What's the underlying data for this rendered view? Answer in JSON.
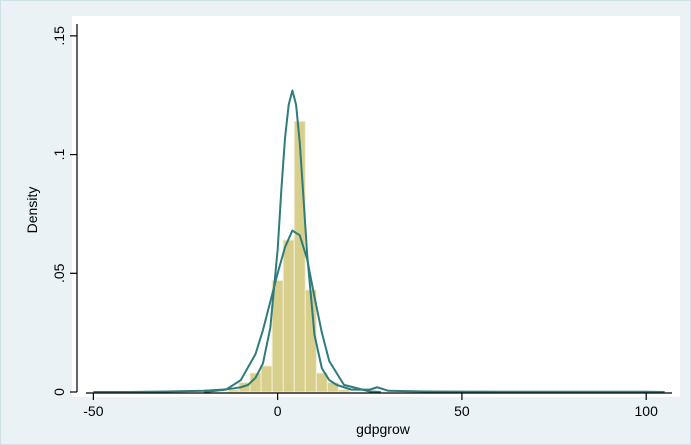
{
  "chart_data": {
    "type": "bar",
    "title": "",
    "xlabel": "gdpgrow",
    "ylabel": "Density",
    "xlim": [
      -52,
      107
    ],
    "ylim": [
      0,
      0.155
    ],
    "x_ticks": [
      -50,
      0,
      50,
      100
    ],
    "x_tick_labels": [
      "-50",
      "0",
      "50",
      "100"
    ],
    "y_ticks": [
      0,
      0.05,
      0.1,
      0.15
    ],
    "y_tick_labels": [
      "0",
      ".05",
      ".1",
      ".15"
    ],
    "bin_width": 3,
    "histogram": {
      "bins": [
        {
          "start": -13.5,
          "density": 0.001
        },
        {
          "start": -10.5,
          "density": 0.004
        },
        {
          "start": -7.5,
          "density": 0.008
        },
        {
          "start": -4.5,
          "density": 0.011
        },
        {
          "start": -1.5,
          "density": 0.047
        },
        {
          "start": 1.5,
          "density": 0.064
        },
        {
          "start": 4.5,
          "density": 0.114
        },
        {
          "start": 7.5,
          "density": 0.043
        },
        {
          "start": 10.5,
          "density": 0.008
        },
        {
          "start": 13.5,
          "density": 0.004
        },
        {
          "start": 16.5,
          "density": 0.001
        }
      ],
      "fill": "#d8cf8c",
      "stroke": "#f2f0d8"
    },
    "series": [
      {
        "kind": "kernel-density",
        "color": "#2f7c7a",
        "x": [
          -50,
          -40,
          -30,
          -20,
          -15,
          -12,
          -10,
          -8,
          -6,
          -4,
          -2,
          0,
          1,
          2,
          3,
          4,
          5,
          6,
          7,
          8,
          10,
          12,
          14,
          16,
          20,
          25,
          27,
          30,
          40,
          60,
          80,
          100,
          105
        ],
        "y": [
          0,
          0,
          0.0002,
          0.0005,
          0.001,
          0.0015,
          0.002,
          0.003,
          0.006,
          0.012,
          0.027,
          0.06,
          0.085,
          0.107,
          0.121,
          0.127,
          0.121,
          0.105,
          0.082,
          0.058,
          0.024,
          0.01,
          0.005,
          0.003,
          0.001,
          0.001,
          0.002,
          0.0005,
          0.0002,
          0.0001,
          0.0001,
          0.0001,
          0
        ]
      },
      {
        "kind": "normal-density",
        "color": "#2f7c7a",
        "x": [
          -20,
          -14,
          -10,
          -6,
          -4,
          -2,
          0,
          2,
          4,
          6,
          8,
          10,
          12,
          14,
          18,
          25,
          28
        ],
        "y": [
          0,
          0.001,
          0.005,
          0.016,
          0.026,
          0.038,
          0.05,
          0.061,
          0.068,
          0.066,
          0.056,
          0.04,
          0.025,
          0.013,
          0.003,
          0.0002,
          0
        ]
      }
    ],
    "grid": false,
    "legend": "none"
  }
}
